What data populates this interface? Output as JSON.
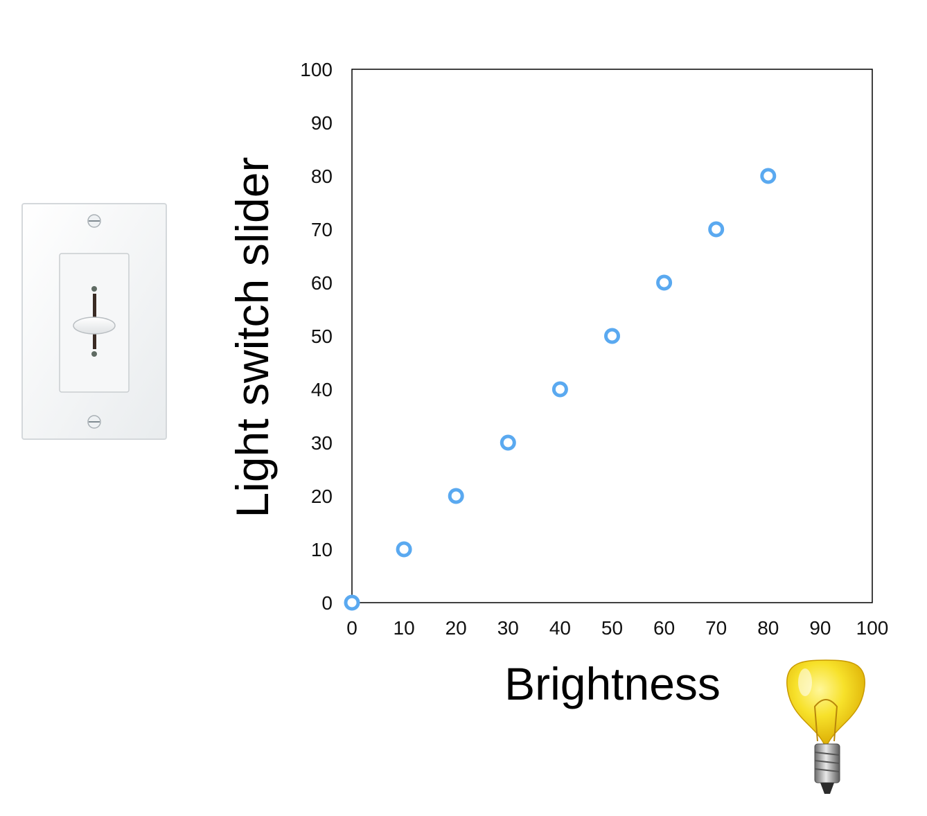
{
  "chart_data": {
    "type": "scatter",
    "xlabel": "Brightness",
    "ylabel": "Light switch slider",
    "xlim": [
      0,
      100
    ],
    "ylim": [
      0,
      100
    ],
    "xticks": [
      0,
      10,
      20,
      30,
      40,
      50,
      60,
      70,
      80,
      90,
      100
    ],
    "yticks": [
      0,
      10,
      20,
      30,
      40,
      50,
      60,
      70,
      80,
      90,
      100
    ],
    "grid": false,
    "series": [
      {
        "marker": "hollow-circle",
        "color": "#5aa9f0",
        "points": [
          {
            "x": 0,
            "y": 0
          },
          {
            "x": 10,
            "y": 10
          },
          {
            "x": 20,
            "y": 20
          },
          {
            "x": 30,
            "y": 30
          },
          {
            "x": 40,
            "y": 40
          },
          {
            "x": 50,
            "y": 50
          },
          {
            "x": 60,
            "y": 60
          },
          {
            "x": 70,
            "y": 70
          },
          {
            "x": 80,
            "y": 80
          }
        ]
      }
    ]
  },
  "illustrations": {
    "left": "light-switch-dimmer",
    "bottom_right": "light-bulb"
  }
}
